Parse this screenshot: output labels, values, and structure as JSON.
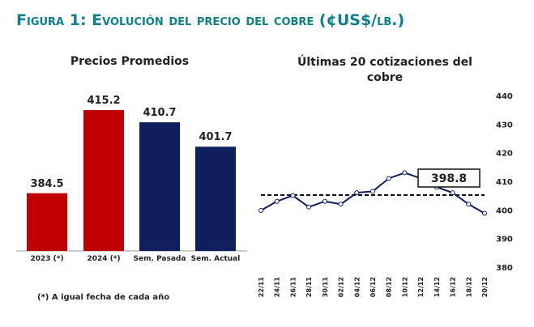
{
  "title": "Figura 1: Evolución del precio del cobre (¢US$/lb.)",
  "chart_data": [
    {
      "type": "bar",
      "title": "Precios Promedios",
      "categories": [
        "2023 (*)",
        "2024 (*)",
        "Sem. Pasada",
        "Sem. Actual"
      ],
      "values": [
        384.5,
        415.2,
        410.7,
        401.7
      ],
      "colors": [
        "#c00000",
        "#c00000",
        "#0d1f5c",
        "#0d1f5c"
      ],
      "ylim": [
        363.2,
        420
      ],
      "note": "(*) A igual fecha de cada año"
    },
    {
      "type": "line",
      "title": "Últimas 20 cotizaciones del cobre",
      "categories": [
        "22/11",
        "24/11",
        "26/11",
        "28/11",
        "30/11",
        "02/12",
        "04/12",
        "06/12",
        "08/12",
        "10/12",
        "12/12",
        "14/12",
        "16/12",
        "18/12",
        "20/12"
      ],
      "series": [
        {
          "name": "cobre",
          "color": "#0d1f5c",
          "values": [
            399.8,
            403,
            405,
            401,
            403,
            402,
            406,
            406.5,
            411,
            413,
            411,
            408,
            406,
            402,
            398.8
          ],
          "value_labels": [
            null,
            null,
            null,
            null,
            null,
            null,
            null,
            null,
            null,
            null,
            null,
            null,
            null,
            null,
            "398.8"
          ]
        }
      ],
      "mean_line": 405.2,
      "ylim": [
        380,
        440
      ],
      "yticks": [
        380,
        390,
        400,
        410,
        420,
        430,
        440
      ]
    }
  ]
}
